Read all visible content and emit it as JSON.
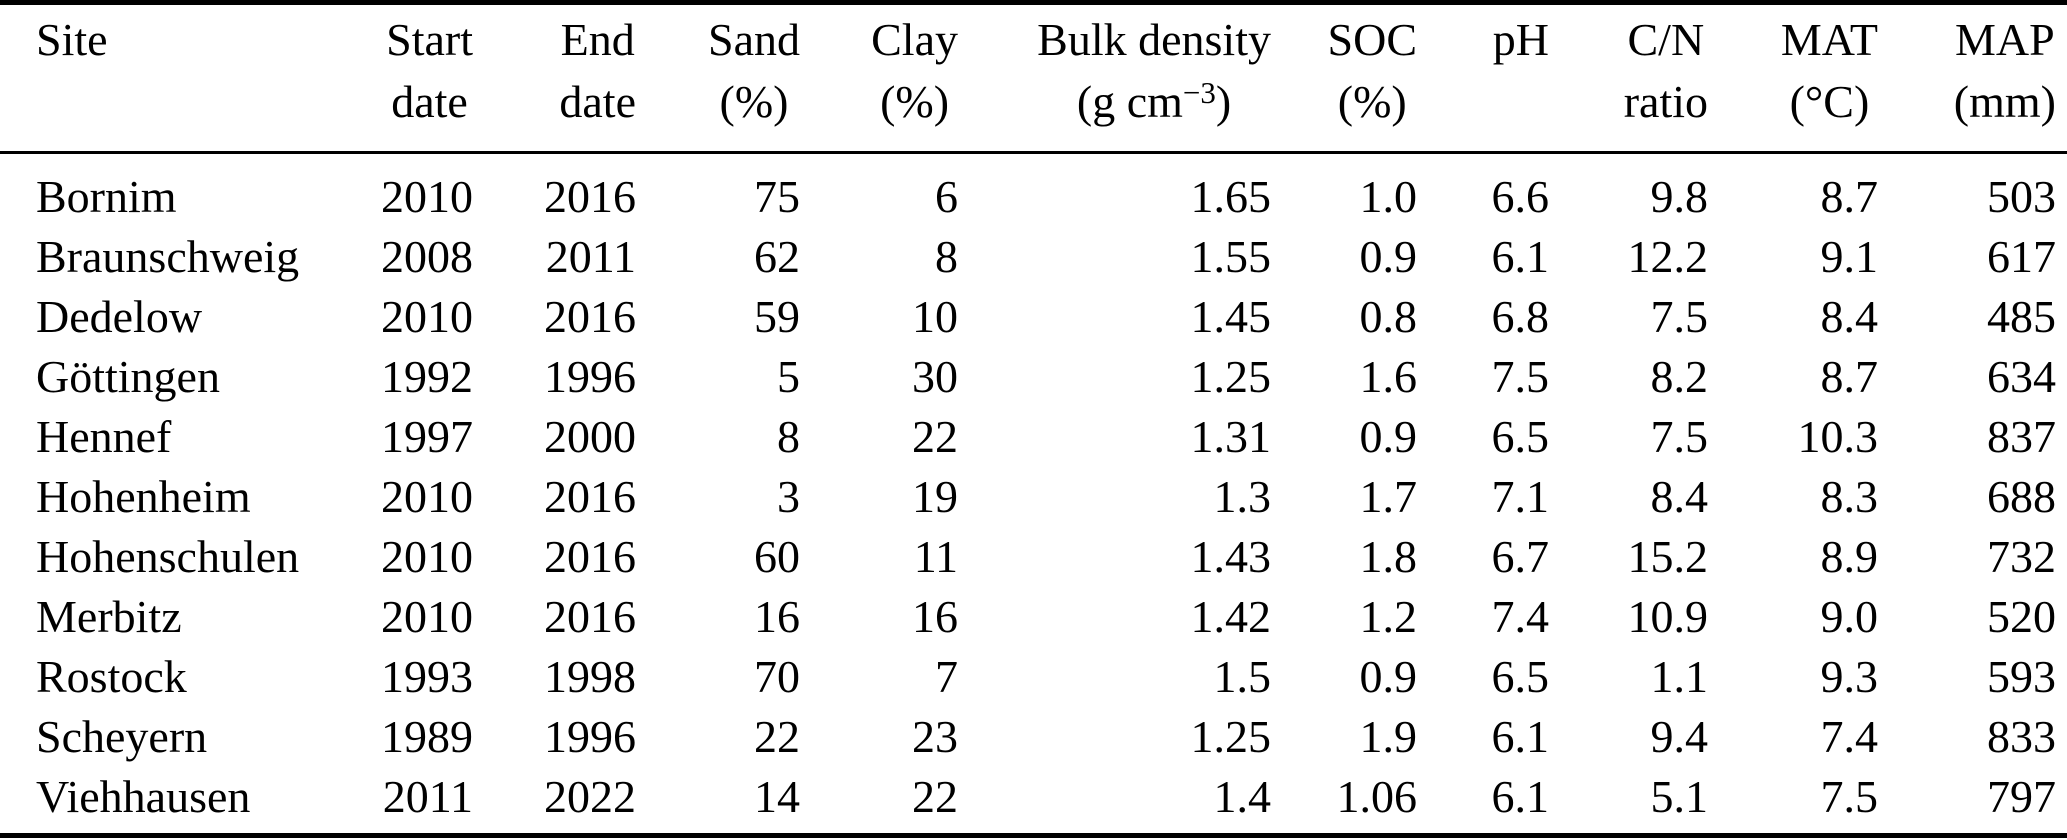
{
  "colors": {
    "background": "#ffffff",
    "text": "#000000",
    "rule": "#000000"
  },
  "table": {
    "columns": [
      {
        "id": "site",
        "label_line1": "Site",
        "label_line2": ""
      },
      {
        "id": "start-date",
        "label_line1": "Start",
        "label_line2": "date"
      },
      {
        "id": "end-date",
        "label_line1": "End",
        "label_line2": "date"
      },
      {
        "id": "sand",
        "label_line1": "Sand",
        "label_line2": "(%)"
      },
      {
        "id": "clay",
        "label_line1": "Clay",
        "label_line2": "(%)"
      },
      {
        "id": "bulk-density",
        "label_line1": "Bulk density",
        "label_line2_prefix": "(g cm",
        "label_line2_sup": "−3",
        "label_line2_suffix": ")"
      },
      {
        "id": "soc",
        "label_line1": "SOC",
        "label_line2": "(%)"
      },
      {
        "id": "ph",
        "label_line1": "pH",
        "label_line2": ""
      },
      {
        "id": "cn-ratio",
        "label_line1": "C/N",
        "label_line2": "ratio"
      },
      {
        "id": "mat",
        "label_line1": "MAT",
        "label_line2": "(°C)"
      },
      {
        "id": "map",
        "label_line1": "MAP",
        "label_line2": "(mm)"
      }
    ],
    "rows": [
      [
        "Bornim",
        "2010",
        "2016",
        "75",
        "6",
        "1.65",
        "1.0",
        "6.6",
        "9.8",
        "8.7",
        "503"
      ],
      [
        "Braunschweig",
        "2008",
        "2011",
        "62",
        "8",
        "1.55",
        "0.9",
        "6.1",
        "12.2",
        "9.1",
        "617"
      ],
      [
        "Dedelow",
        "2010",
        "2016",
        "59",
        "10",
        "1.45",
        "0.8",
        "6.8",
        "7.5",
        "8.4",
        "485"
      ],
      [
        "Göttingen",
        "1992",
        "1996",
        "5",
        "30",
        "1.25",
        "1.6",
        "7.5",
        "8.2",
        "8.7",
        "634"
      ],
      [
        "Hennef",
        "1997",
        "2000",
        "8",
        "22",
        "1.31",
        "0.9",
        "6.5",
        "7.5",
        "10.3",
        "837"
      ],
      [
        "Hohenheim",
        "2010",
        "2016",
        "3",
        "19",
        "1.3",
        "1.7",
        "7.1",
        "8.4",
        "8.3",
        "688"
      ],
      [
        "Hohenschulen",
        "2010",
        "2016",
        "60",
        "11",
        "1.43",
        "1.8",
        "6.7",
        "15.2",
        "8.9",
        "732"
      ],
      [
        "Merbitz",
        "2010",
        "2016",
        "16",
        "16",
        "1.42",
        "1.2",
        "7.4",
        "10.9",
        "9.0",
        "520"
      ],
      [
        "Rostock",
        "1993",
        "1998",
        "70",
        "7",
        "1.5",
        "0.9",
        "6.5",
        "1.1",
        "9.3",
        "593"
      ],
      [
        "Scheyern",
        "1989",
        "1996",
        "22",
        "23",
        "1.25",
        "1.9",
        "6.1",
        "9.4",
        "7.4",
        "833"
      ],
      [
        "Viehhausen",
        "2011",
        "2022",
        "14",
        "22",
        "1.4",
        "1.06",
        "6.1",
        "5.1",
        "7.5",
        "797"
      ]
    ]
  }
}
